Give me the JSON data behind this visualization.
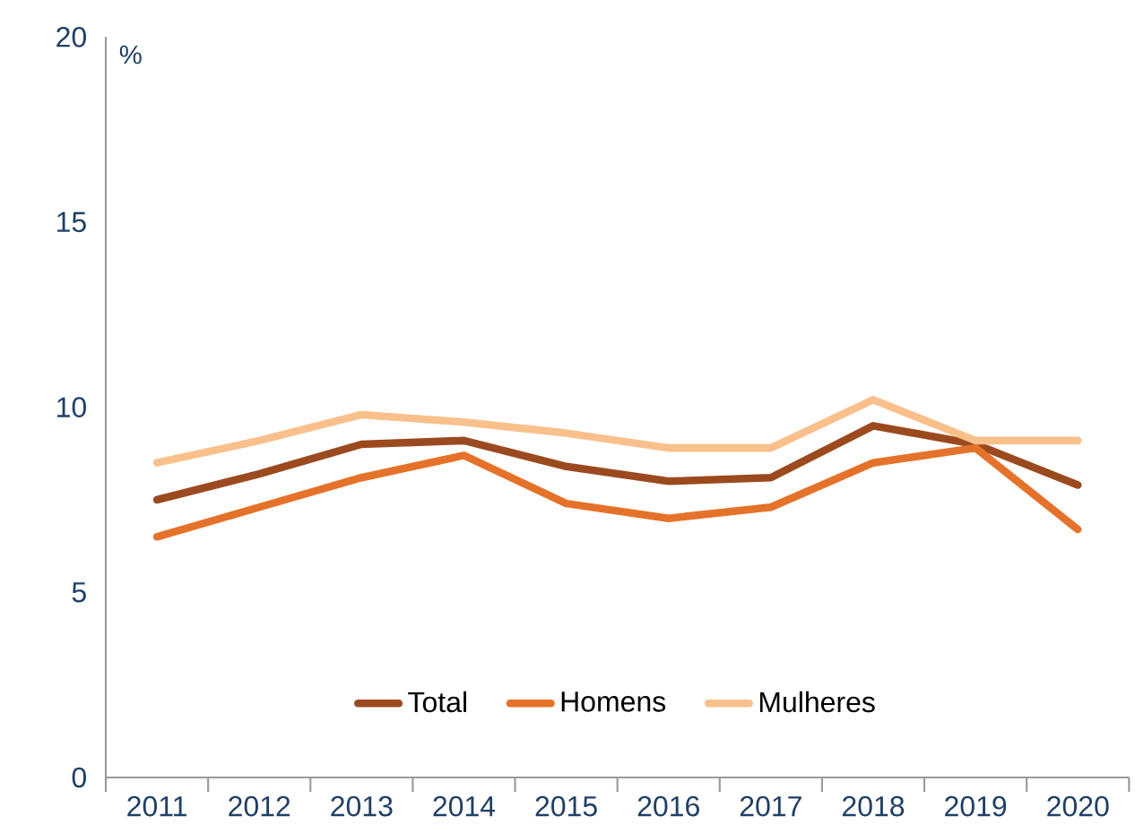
{
  "chart_data": {
    "type": "line",
    "ylabel": "%",
    "categories": [
      "2011",
      "2012",
      "2013",
      "2014",
      "2015",
      "2016",
      "2017",
      "2018",
      "2019",
      "2020"
    ],
    "series": [
      {
        "name": "Total",
        "color": "#9b4a1f",
        "values": [
          7.5,
          8.2,
          9.0,
          9.1,
          8.4,
          8.0,
          8.1,
          9.5,
          9.0,
          7.9
        ]
      },
      {
        "name": "Homens",
        "color": "#e5722a",
        "values": [
          6.5,
          7.3,
          8.1,
          8.7,
          7.4,
          7.0,
          7.3,
          8.5,
          8.9,
          6.7
        ]
      },
      {
        "name": "Mulheres",
        "color": "#f9c08c",
        "values": [
          8.5,
          9.1,
          9.8,
          9.6,
          9.3,
          8.9,
          8.9,
          10.2,
          9.1,
          9.1
        ]
      }
    ],
    "ylim": [
      0,
      20
    ],
    "yticks": [
      0,
      5,
      10,
      15,
      20
    ],
    "legend": "bottom",
    "grid": false,
    "marker": "none",
    "line_style": "solid"
  }
}
